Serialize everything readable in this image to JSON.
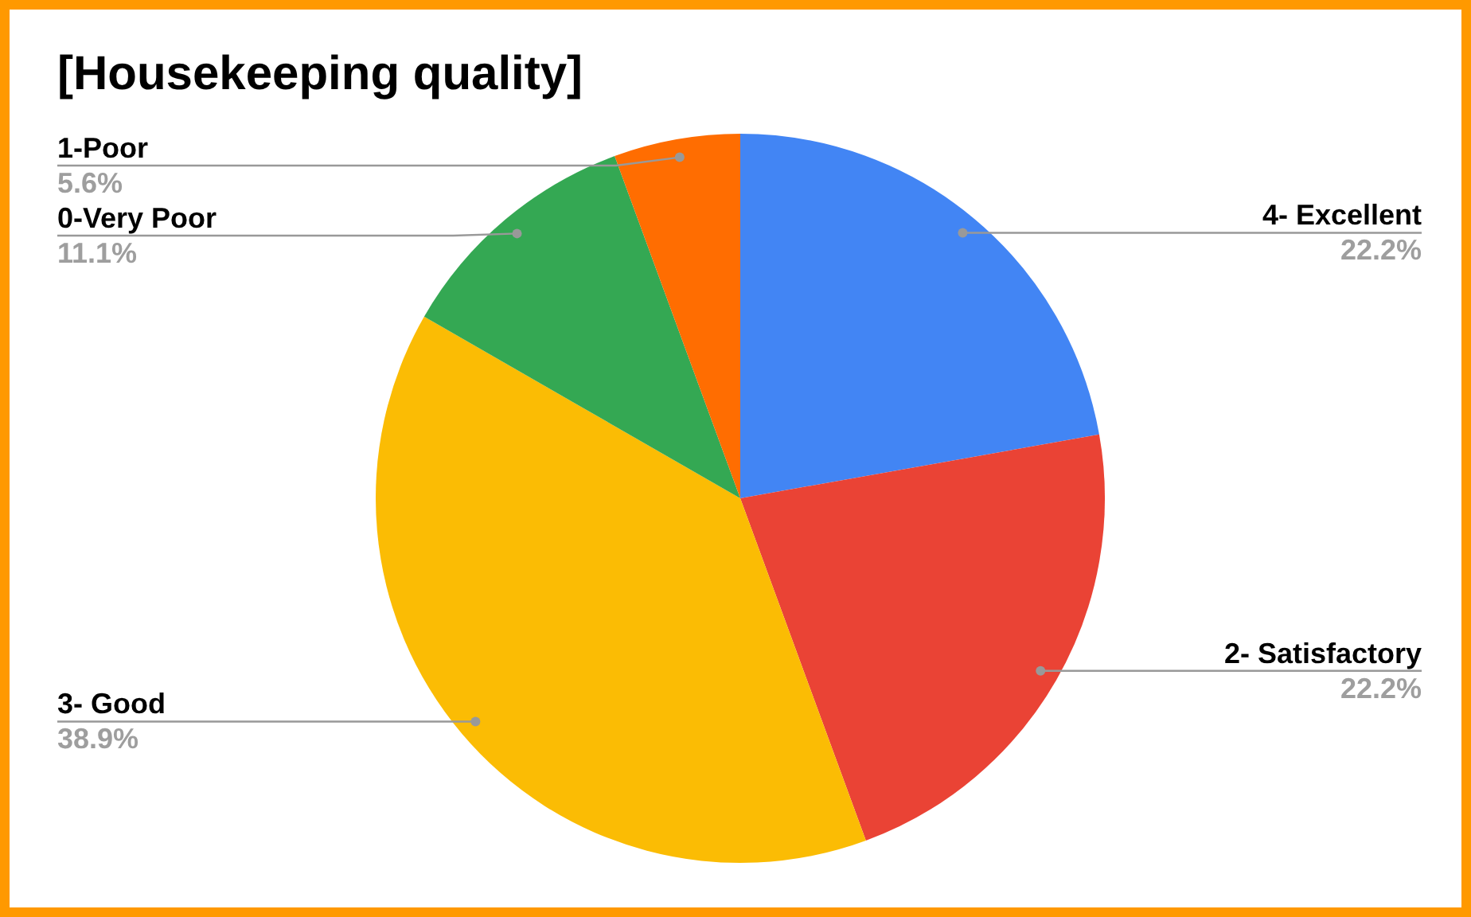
{
  "chart_data": {
    "type": "pie",
    "title": "[Housekeeping quality]",
    "categories": [
      "4- Excellent",
      "2- Satisfactory",
      "3- Good",
      "0-Very Poor",
      "1-Poor"
    ],
    "values": [
      22.2,
      22.2,
      38.9,
      11.1,
      5.6
    ],
    "colors": [
      "#4285f4",
      "#ea4335",
      "#fbbc04",
      "#34a853",
      "#ff6d01"
    ],
    "value_labels": [
      "22.2%",
      "22.2%",
      "38.9%",
      "11.1%",
      "5.6%"
    ],
    "legend": false
  }
}
